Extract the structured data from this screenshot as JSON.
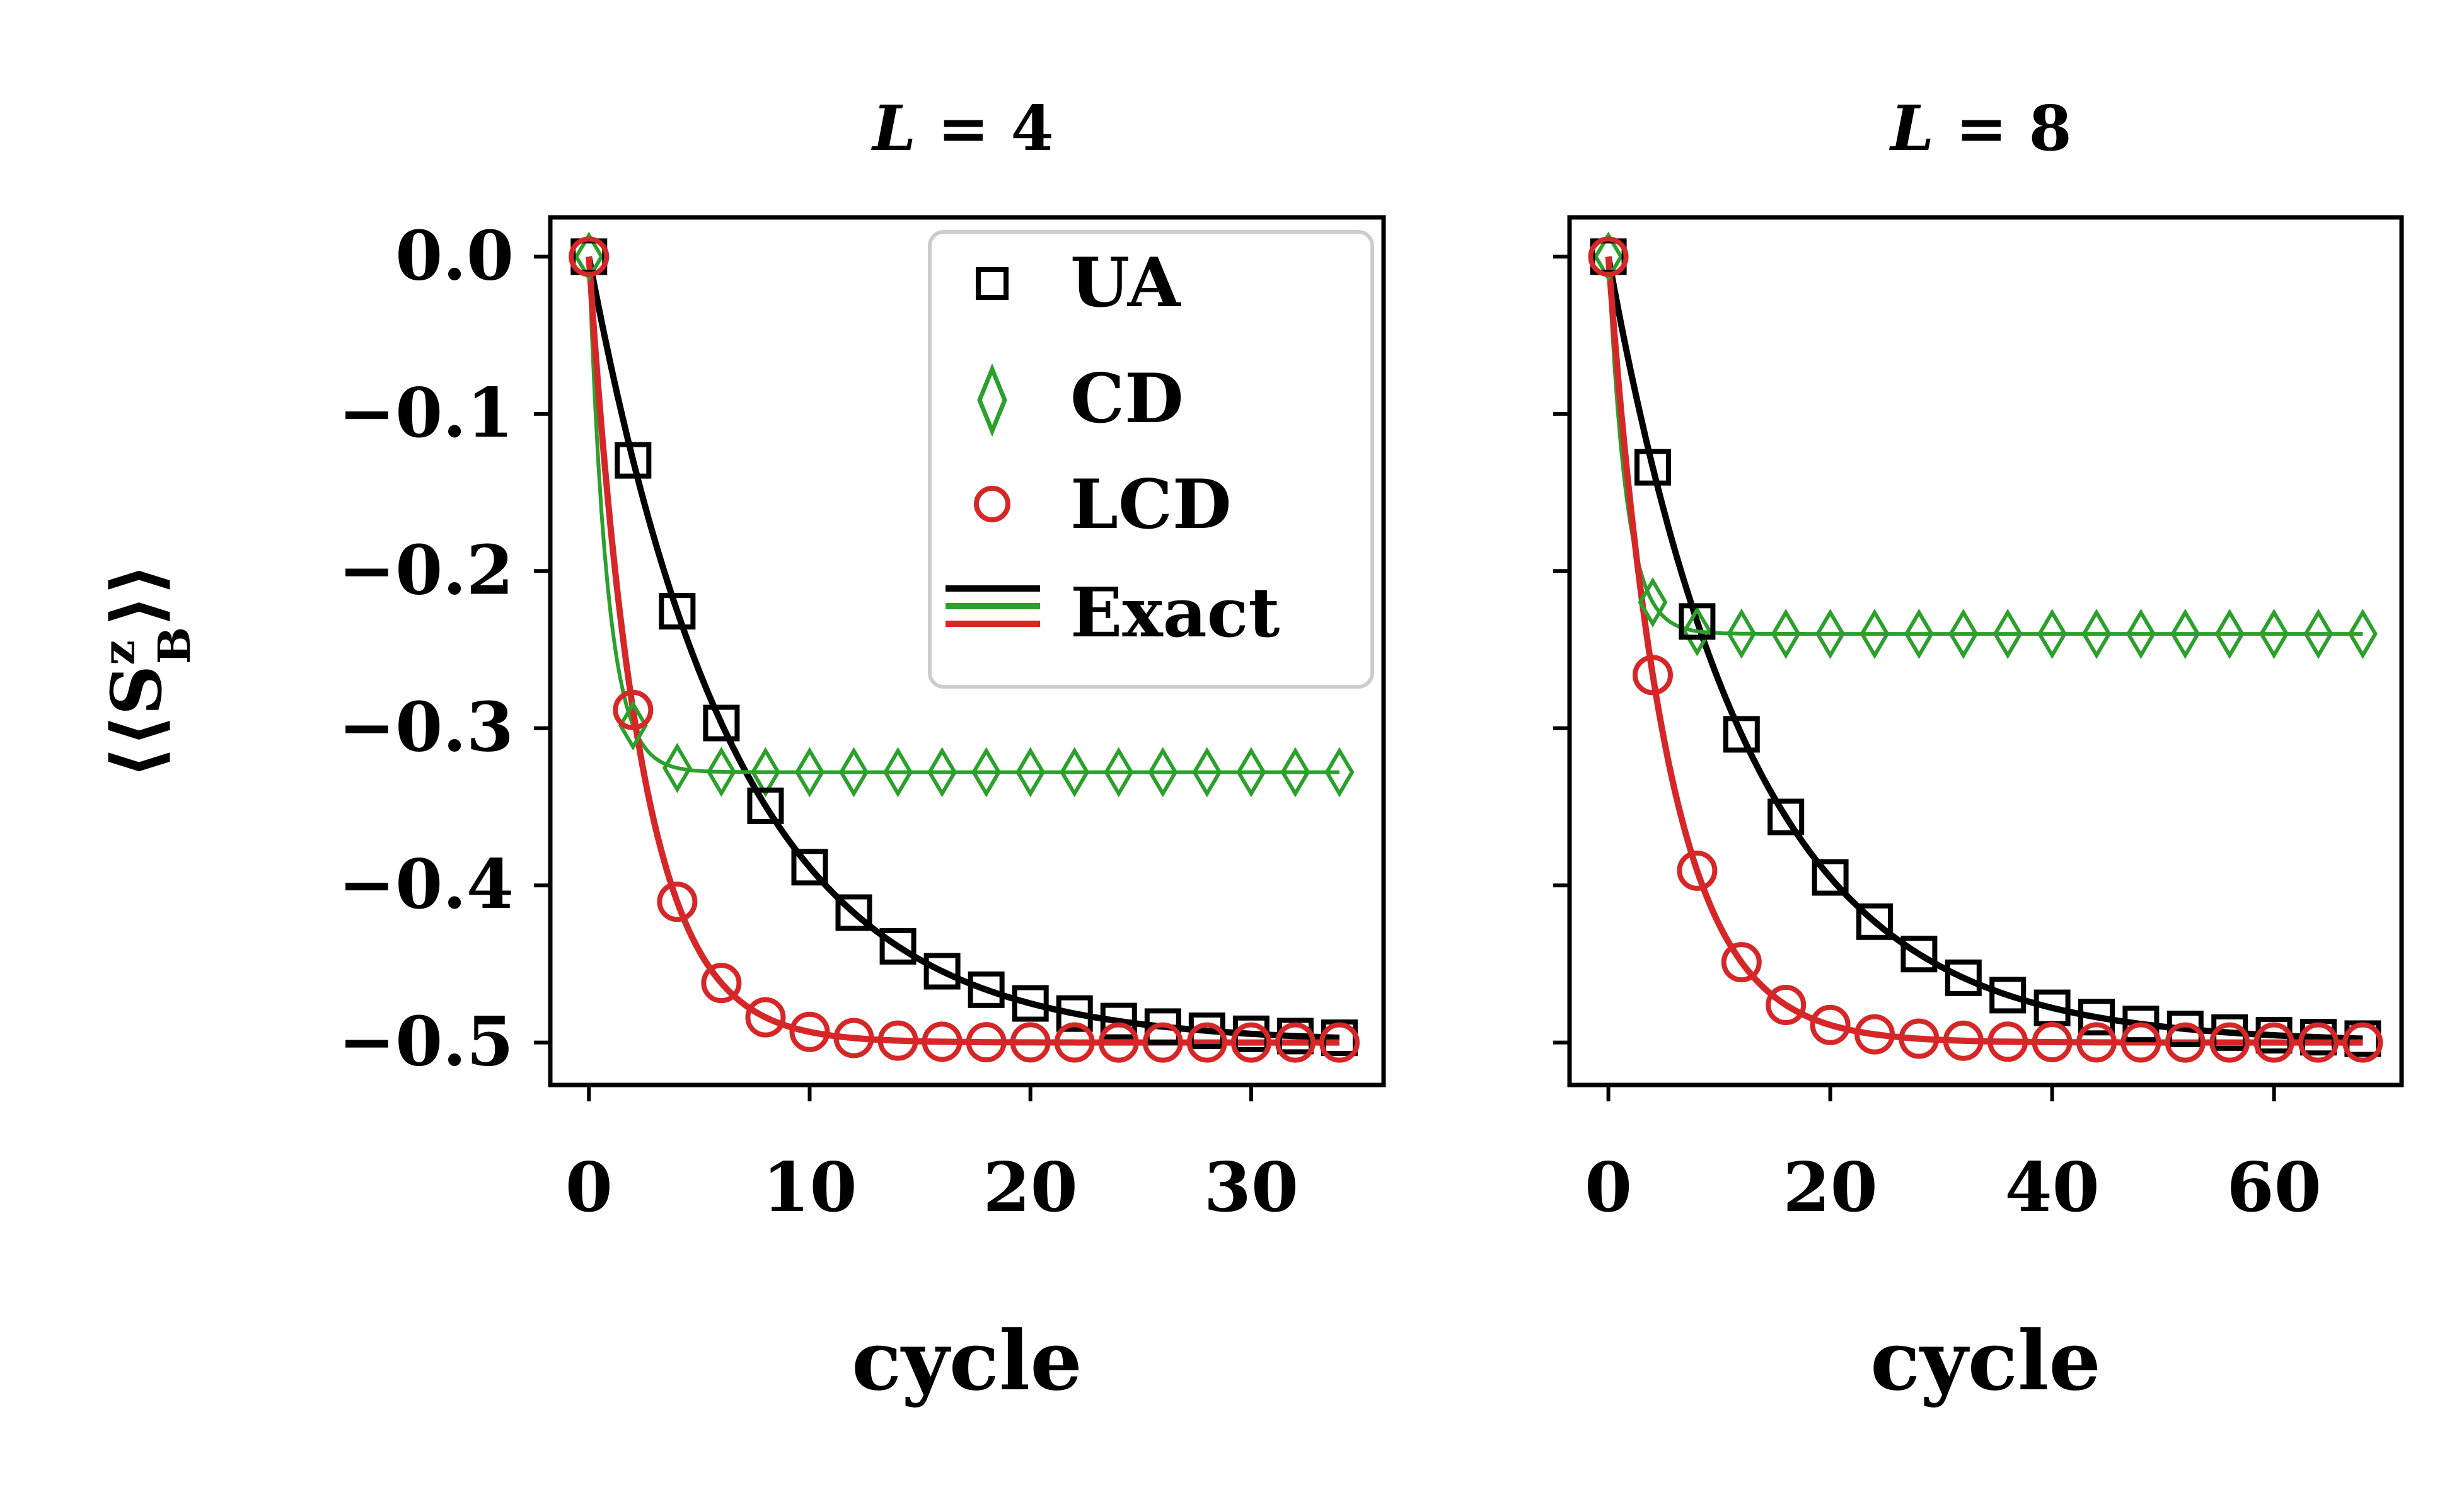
{
  "figure": {
    "ylabel": "⟨⟨S",
    "ylabel_sup": "z",
    "ylabel_sub": "B",
    "ylabel_close": "⟩⟩"
  },
  "legend": {
    "entries": [
      {
        "label": "UA",
        "color": "#000000",
        "marker": "square"
      },
      {
        "label": "CD",
        "color": "#2ca02c",
        "marker": "diamond"
      },
      {
        "label": "LCD",
        "color": "#d62728",
        "marker": "circle"
      },
      {
        "label": "Exact",
        "colors": [
          "#000000",
          "#2ca02c",
          "#d62728"
        ],
        "marker": "lines"
      }
    ]
  },
  "chart_data": [
    {
      "type": "line",
      "title_var": "L",
      "title_rest": " = 4",
      "xlabel": "cycle",
      "ylabel": "⟨⟨S^z_B⟩⟩",
      "xlim": [
        -1.75,
        36
      ],
      "ylim": [
        -0.527,
        0.025
      ],
      "xticks": [
        0,
        10,
        20,
        30
      ],
      "xtick_labels": [
        "0",
        "10",
        "20",
        "30"
      ],
      "yticks": [
        0.0,
        -0.1,
        -0.2,
        -0.3,
        -0.4,
        -0.5
      ],
      "ytick_labels": [
        "0.0",
        "−0.1",
        "−0.2",
        "−0.3",
        "−0.4",
        "−0.5"
      ],
      "show_ytick_labels": true,
      "legend": "top-right",
      "series": [
        {
          "name": "UA",
          "color": "#000000",
          "marker": "square",
          "step": 2,
          "lam": 0.15,
          "plateau": -0.5
        },
        {
          "name": "CD",
          "color": "#2ca02c",
          "marker": "diamond",
          "step": 2,
          "lam": 1.2,
          "plateau": -0.328
        },
        {
          "name": "LCD",
          "color": "#d62728",
          "marker": "circle",
          "step": 2,
          "lam": 0.43,
          "plateau": -0.5
        }
      ],
      "x_max": 34
    },
    {
      "type": "line",
      "title_var": "L",
      "title_rest": " = 8",
      "xlabel": "cycle",
      "ylabel": "",
      "xlim": [
        -3.5,
        71.5
      ],
      "ylim": [
        -0.527,
        0.025
      ],
      "xticks": [
        0,
        20,
        40,
        60
      ],
      "xtick_labels": [
        "0",
        "20",
        "40",
        "60"
      ],
      "yticks": [
        0.0,
        -0.1,
        -0.2,
        -0.3,
        -0.4,
        -0.5
      ],
      "ytick_labels": [
        "0.0",
        "−0.1",
        "−0.2",
        "−0.3",
        "−0.4",
        "−0.5"
      ],
      "show_ytick_labels": false,
      "legend": "none",
      "series": [
        {
          "name": "UA",
          "color": "#000000",
          "marker": "square",
          "step": 4,
          "lam": 0.078,
          "plateau": -0.5
        },
        {
          "name": "CD",
          "color": "#2ca02c",
          "marker": "diamond",
          "step": 4,
          "lam": 0.62,
          "plateau": -0.24
        },
        {
          "name": "LCD",
          "color": "#d62728",
          "marker": "circle",
          "step": 4,
          "lam": 0.19,
          "plateau": -0.5
        }
      ],
      "x_max": 68
    }
  ]
}
